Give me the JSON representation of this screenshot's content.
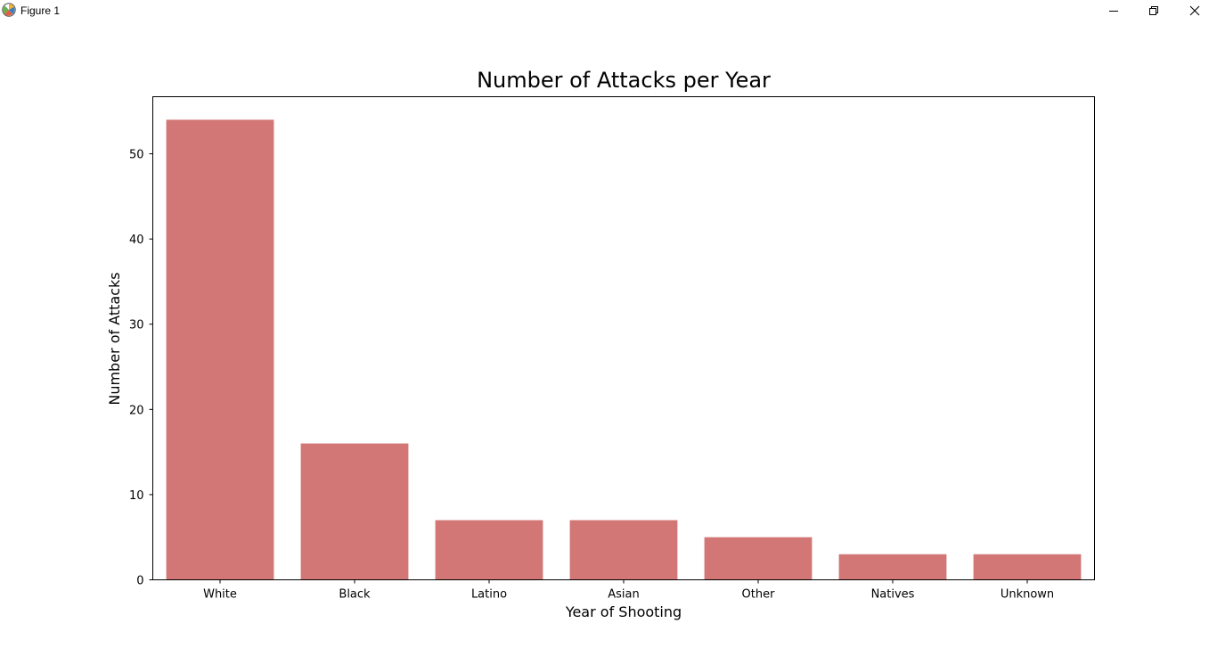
{
  "window": {
    "title": "Figure 1",
    "icons": {
      "app": "matplotlib-icon",
      "minimize": "minimize-icon",
      "maximize": "restore-icon",
      "close": "close-icon"
    }
  },
  "chart_data": {
    "type": "bar",
    "title": "Number of Attacks per Year",
    "xlabel": "Year of Shooting",
    "ylabel": "Number of Attacks",
    "categories": [
      "White",
      "Black",
      "Latino",
      "Asian",
      "Other",
      "Natives",
      "Unknown"
    ],
    "values": [
      54,
      16,
      7,
      7,
      5,
      3,
      3
    ],
    "ylim": [
      0,
      56.7
    ],
    "yticks": [
      0,
      10,
      20,
      30,
      40,
      50
    ],
    "bar_color": "#d27775",
    "grid": false,
    "legend": "none"
  }
}
